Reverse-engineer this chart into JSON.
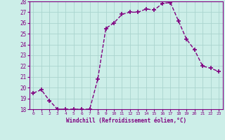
{
  "x": [
    0,
    1,
    2,
    3,
    4,
    5,
    6,
    7,
    8,
    9,
    10,
    11,
    12,
    13,
    14,
    15,
    16,
    17,
    18,
    19,
    20,
    21,
    22,
    23
  ],
  "y": [
    19.5,
    19.8,
    18.8,
    18.0,
    18.0,
    18.0,
    18.0,
    18.0,
    20.8,
    25.5,
    26.0,
    26.8,
    27.0,
    27.0,
    27.3,
    27.2,
    27.8,
    27.9,
    26.2,
    24.5,
    23.5,
    22.0,
    21.8,
    21.5
  ],
  "line_color": "#800080",
  "marker": "+",
  "marker_size": 4,
  "marker_lw": 1.2,
  "bg_color": "#cceee8",
  "grid_color": "#aad4ce",
  "xlabel": "Windchill (Refroidissement éolien,°C)",
  "xlabel_color": "#800080",
  "tick_color": "#800080",
  "ylim": [
    18,
    28
  ],
  "xlim": [
    -0.5,
    23.5
  ],
  "yticks": [
    18,
    19,
    20,
    21,
    22,
    23,
    24,
    25,
    26,
    27,
    28
  ],
  "xticks": [
    0,
    1,
    2,
    3,
    4,
    5,
    6,
    7,
    8,
    9,
    10,
    11,
    12,
    13,
    14,
    15,
    16,
    17,
    18,
    19,
    20,
    21,
    22,
    23
  ],
  "xtick_labels": [
    "0",
    "1",
    "2",
    "3",
    "4",
    "5",
    "6",
    "7",
    "8",
    "9",
    "10",
    "11",
    "12",
    "13",
    "14",
    "15",
    "16",
    "17",
    "18",
    "19",
    "20",
    "21",
    "22",
    "23"
  ],
  "spine_color": "#800080",
  "line_width": 1.0
}
